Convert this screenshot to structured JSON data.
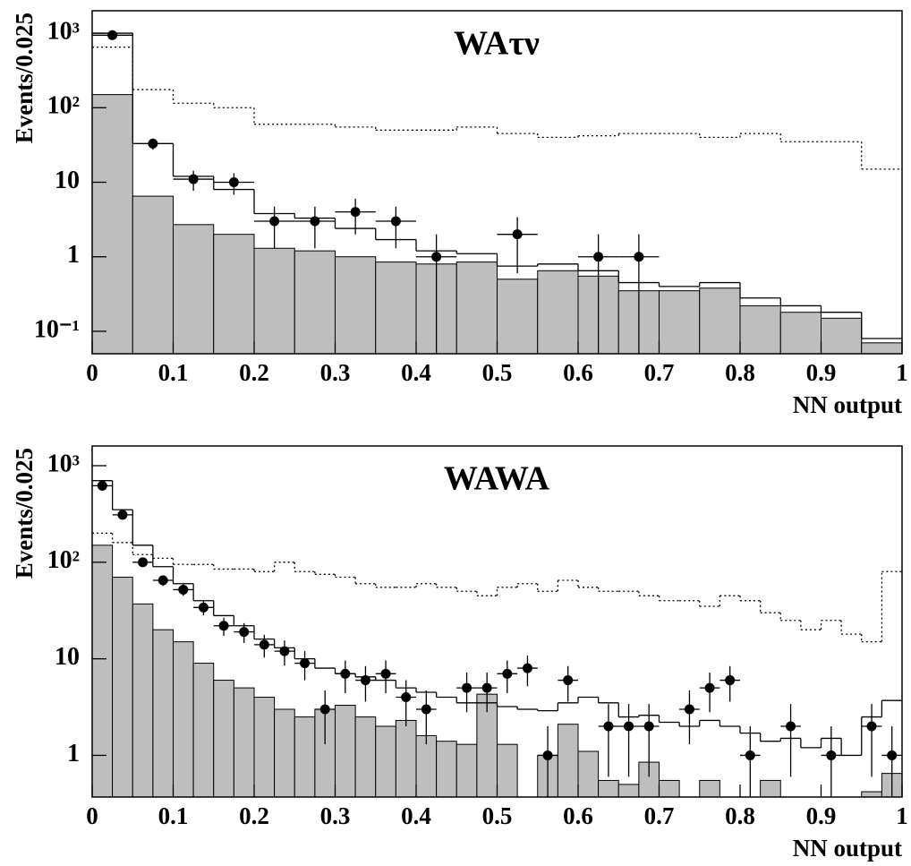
{
  "chart_data": [
    {
      "type": "histogram",
      "title": "WAτν",
      "xlabel": "NN output",
      "ylabel": "Events/0.025",
      "log_y": true,
      "bins": [
        0,
        0.05,
        0.1,
        0.15,
        0.2,
        0.25,
        0.3,
        0.35,
        0.4,
        0.45,
        0.5,
        0.55,
        0.6,
        0.65,
        0.7,
        0.75,
        0.8,
        0.85,
        0.9,
        0.95,
        1
      ],
      "xlim": [
        0,
        1
      ],
      "xticks": [
        0,
        0.1,
        0.2,
        0.3,
        0.4,
        0.5,
        0.6,
        0.7,
        0.8,
        0.9,
        1
      ],
      "ylim": [
        0.05,
        2000
      ],
      "yticks": [
        {
          "value": 1000,
          "label": "10³"
        },
        {
          "value": 100,
          "label": "10²"
        },
        10,
        1,
        {
          "value": 0.1,
          "label": "10⁻¹"
        }
      ],
      "series": [
        {
          "style": "filled",
          "color": "#bebebe",
          "values": [
            150,
            6.5,
            2.7,
            2.0,
            1.3,
            1.2,
            1.0,
            0.85,
            0.8,
            0.85,
            0.5,
            0.65,
            0.55,
            0.35,
            0.35,
            0.38,
            0.22,
            0.18,
            0.15,
            0.07
          ]
        },
        {
          "style": "step",
          "color": "#000000",
          "values": [
            1000,
            33,
            12,
            8,
            3.8,
            3.3,
            2.4,
            1.7,
            1.2,
            1.1,
            0.75,
            0.8,
            0.65,
            0.45,
            0.4,
            0.45,
            0.28,
            0.22,
            0.18,
            0.08
          ]
        },
        {
          "style": "dotted",
          "color": "#000000",
          "values": [
            650,
            175,
            115,
            100,
            60,
            60,
            55,
            50,
            50,
            55,
            45,
            40,
            42,
            45,
            45,
            40,
            45,
            35,
            35,
            15
          ]
        },
        {
          "style": "points",
          "color": "#000000",
          "values": [
            940,
            33,
            11,
            10,
            3,
            3,
            4,
            3,
            1,
            null,
            2,
            null,
            1,
            1,
            null,
            null,
            null,
            null,
            null,
            null
          ],
          "errors": [
            31,
            5.7,
            3.3,
            3.2,
            1.7,
            1.7,
            2,
            1.7,
            1,
            null,
            1.4,
            null,
            1,
            1,
            null,
            null,
            null,
            null,
            null,
            null
          ]
        }
      ]
    },
    {
      "type": "histogram",
      "title": "WAWA",
      "xlabel": "NN output",
      "ylabel": "Events/0.025",
      "log_y": true,
      "bins": [
        0,
        0.025,
        0.05,
        0.075,
        0.1,
        0.125,
        0.15,
        0.175,
        0.2,
        0.225,
        0.25,
        0.275,
        0.3,
        0.325,
        0.35,
        0.375,
        0.4,
        0.425,
        0.45,
        0.475,
        0.5,
        0.525,
        0.55,
        0.575,
        0.6,
        0.625,
        0.65,
        0.675,
        0.7,
        0.725,
        0.75,
        0.775,
        0.8,
        0.825,
        0.85,
        0.875,
        0.9,
        0.925,
        0.95,
        0.975,
        1
      ],
      "xlim": [
        0,
        1
      ],
      "xticks": [
        0,
        0.1,
        0.2,
        0.3,
        0.4,
        0.5,
        0.6,
        0.7,
        0.8,
        0.9,
        1
      ],
      "ylim": [
        0.37,
        1600
      ],
      "yticks": [
        {
          "value": 1000,
          "label": "10³"
        },
        {
          "value": 100,
          "label": "10²"
        },
        10,
        1
      ],
      "series": [
        {
          "style": "filled",
          "color": "#bebebe",
          "values": [
            150,
            70,
            37,
            20,
            15,
            9,
            6,
            5,
            4,
            3,
            2.5,
            3,
            3.3,
            2.5,
            2,
            2.3,
            1.6,
            1.4,
            1.3,
            4.3,
            1.3,
            null,
            1,
            2.1,
            1.1,
            0.55,
            0.5,
            0.85,
            0.55,
            null,
            0.55,
            null,
            null,
            0.55,
            null,
            null,
            null,
            null,
            0.42,
            0.65
          ]
        },
        {
          "style": "step",
          "color": "#000000",
          "values": [
            700,
            350,
            150,
            90,
            60,
            40,
            28,
            22,
            16,
            13,
            10,
            8,
            7,
            6.5,
            6,
            5,
            4.5,
            4,
            3.5,
            3.5,
            3.2,
            3,
            2.9,
            3.5,
            4,
            3.5,
            2.5,
            2.6,
            2.2,
            2,
            2.3,
            2,
            1.7,
            1.4,
            1.5,
            1.2,
            1.5,
            1,
            2.5,
            3.7
          ]
        },
        {
          "style": "dotted",
          "color": "#000000",
          "values": [
            200,
            160,
            120,
            110,
            95,
            95,
            85,
            85,
            80,
            100,
            80,
            75,
            70,
            60,
            55,
            55,
            60,
            55,
            50,
            45,
            55,
            60,
            50,
            65,
            55,
            50,
            50,
            45,
            40,
            40,
            35,
            45,
            40,
            30,
            25,
            20,
            25,
            18,
            15,
            80
          ]
        },
        {
          "style": "points",
          "color": "#000000",
          "values": [
            620,
            310,
            100,
            65,
            52,
            34,
            22,
            19,
            14,
            12,
            9,
            3,
            7,
            6,
            7,
            4,
            3,
            null,
            5,
            5,
            7,
            8,
            1,
            6,
            null,
            2,
            2,
            2,
            null,
            3,
            5,
            6,
            1,
            null,
            2,
            null,
            1,
            null,
            2,
            1
          ],
          "errors": [
            25,
            18,
            10,
            8,
            7.2,
            5.8,
            4.7,
            4.4,
            3.7,
            3.5,
            3,
            1.7,
            2.6,
            2.4,
            2.6,
            2,
            1.7,
            null,
            2.2,
            2.2,
            2.6,
            2.8,
            1,
            2.4,
            null,
            1.4,
            1.4,
            1.4,
            null,
            1.7,
            2.2,
            2.4,
            1,
            null,
            1.4,
            null,
            1,
            null,
            1.4,
            1
          ]
        }
      ]
    }
  ]
}
